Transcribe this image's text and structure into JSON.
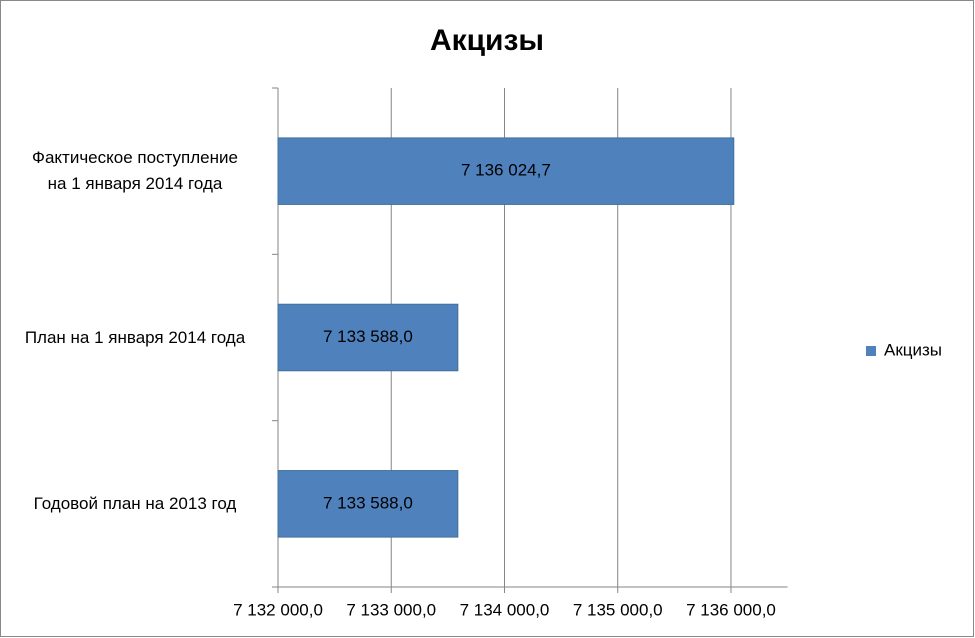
{
  "chart_data": {
    "type": "barh",
    "title": "Акцизы",
    "categories": [
      "Фактическое поступление\nна  1 января   2014 года",
      "План на 1 января 2014 года",
      "Годовой  план на 2013  год"
    ],
    "series": [
      {
        "name": "Акцизы",
        "color": "#4f81bd",
        "values": [
          7136024.7,
          7133588.0,
          7133588.0
        ],
        "value_labels": [
          "7 136 024,7",
          "7 133 588,0",
          "7 133 588,0"
        ]
      }
    ],
    "xlim": [
      7132000,
      7136500
    ],
    "xticks": [
      {
        "value": 7132000,
        "label": "7 132 000,0"
      },
      {
        "value": 7133000,
        "label": "7 133 000,0"
      },
      {
        "value": 7134000,
        "label": "7 134 000,0"
      },
      {
        "value": 7135000,
        "label": "7 135 000,0"
      },
      {
        "value": 7136000,
        "label": "7 136 000,0"
      }
    ],
    "grid": true,
    "legend": "right"
  }
}
